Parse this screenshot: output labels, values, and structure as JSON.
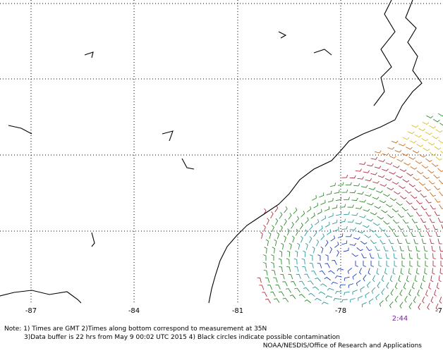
{
  "map": {
    "longitude_labels": [
      "-87",
      "-84",
      "-81",
      "-78",
      "-7"
    ],
    "time_label": "2:44",
    "notes": [
      "Note: 1) Times are GMT 2)Times along bottom correspond to measurement at 35N",
      "3)Data buffer is 22 hrs from May  9 00:02 UTC 2015 4) Black circles indicate possible contamination"
    ],
    "credit": "NOAA/NESDIS/Office of Research and Applications"
  }
}
